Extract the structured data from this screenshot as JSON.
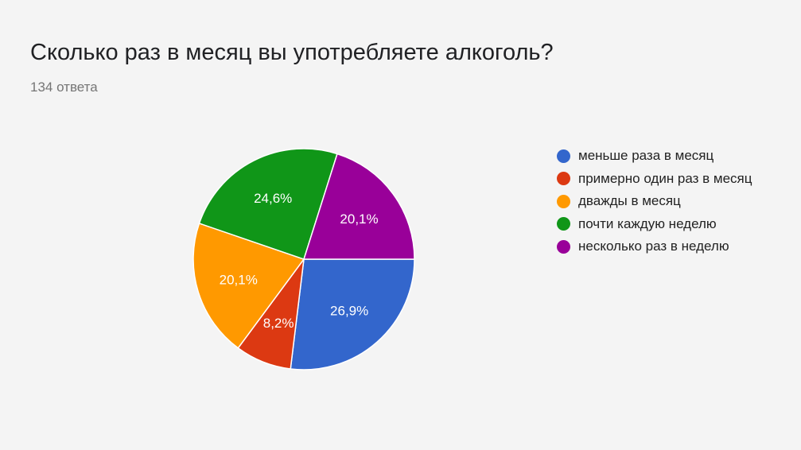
{
  "header": {
    "title": "Сколько раз в месяц вы употребляете алкоголь?",
    "subtitle": "134 ответа"
  },
  "chart_data": {
    "type": "pie",
    "categories": [
      "меньше раза в месяц",
      "примерно один раз в месяц",
      "дважды в месяц",
      "почти каждую неделю",
      "несколько раз в неделю"
    ],
    "values": [
      26.9,
      8.2,
      20.1,
      24.6,
      20.1
    ],
    "labels": [
      "26,9%",
      "8,2%",
      "20,1%",
      "24,6%",
      "20,1%"
    ],
    "colors": [
      "#3366cc",
      "#dc3912",
      "#ff9900",
      "#109618",
      "#990099"
    ],
    "legend_position": "right"
  }
}
